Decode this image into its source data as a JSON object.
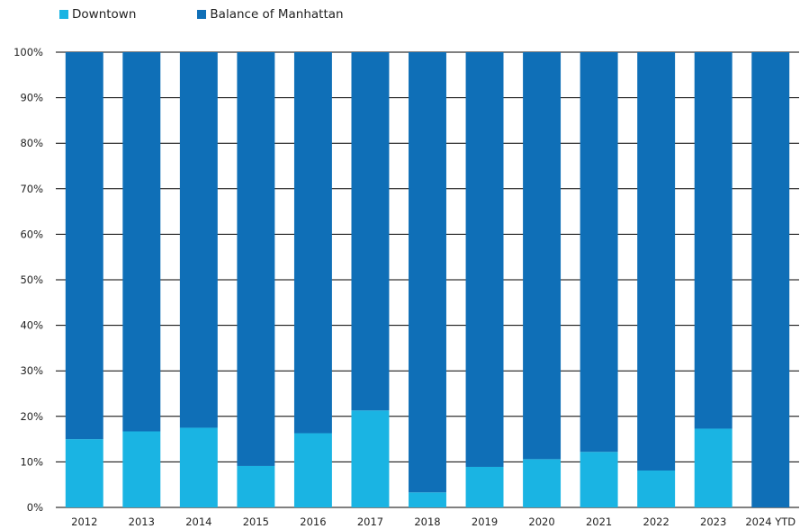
{
  "chart_data": {
    "type": "bar",
    "stacked": true,
    "categories": [
      "2012",
      "2013",
      "2014",
      "2015",
      "2016",
      "2017",
      "2018",
      "2019",
      "2020",
      "2021",
      "2022",
      "2023",
      "2024 YTD"
    ],
    "series": [
      {
        "name": "Downtown",
        "color": "#1ab4e3",
        "values": [
          15,
          16.7,
          17.5,
          9.1,
          16.3,
          21.3,
          3.3,
          8.9,
          10.6,
          12.2,
          8.1,
          17.3,
          0
        ]
      },
      {
        "name": "Balance of Manhattan",
        "color": "#0f6fb7",
        "values": [
          85,
          83.3,
          82.5,
          90.9,
          83.7,
          78.7,
          96.7,
          91.1,
          89.4,
          87.8,
          91.9,
          82.7,
          100
        ]
      }
    ],
    "ylim": [
      0,
      100
    ],
    "yticks": [
      "0%",
      "10%",
      "20%",
      "30%",
      "40%",
      "50%",
      "60%",
      "70%",
      "80%",
      "90%",
      "100%"
    ],
    "grid": true,
    "legend_position": "top-left"
  }
}
